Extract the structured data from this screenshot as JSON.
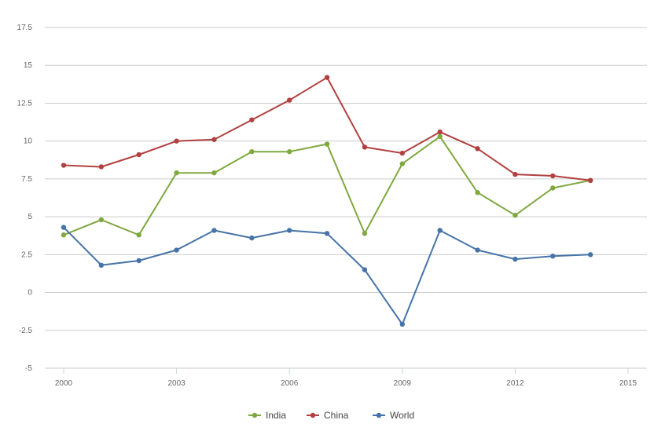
{
  "chart_data": {
    "type": "line",
    "title": "",
    "xlabel": "",
    "ylabel": "",
    "x": [
      2000,
      2001,
      2002,
      2003,
      2004,
      2005,
      2006,
      2007,
      2008,
      2009,
      2010,
      2011,
      2012,
      2013,
      2014
    ],
    "xlim": [
      2000,
      2015
    ],
    "ylim": [
      -5,
      17.5
    ],
    "x_ticks": [
      "2000",
      "2003",
      "2006",
      "2009",
      "2012",
      "2015"
    ],
    "y_ticks": [
      "17.5",
      "15",
      "12.5",
      "10",
      "7.5",
      "5",
      "2.5",
      "0",
      "-2.5",
      "-5"
    ],
    "grid": "horizontal",
    "legend_position": "bottom",
    "series": [
      {
        "name": "India",
        "color": "#7fa83f",
        "values": [
          3.8,
          4.8,
          3.8,
          7.9,
          7.9,
          9.3,
          9.3,
          9.8,
          3.9,
          8.5,
          10.3,
          6.6,
          5.1,
          6.9,
          7.4
        ]
      },
      {
        "name": "China",
        "color": "#b24040",
        "values": [
          8.4,
          8.3,
          9.1,
          10.0,
          10.1,
          11.4,
          12.7,
          14.2,
          9.6,
          9.2,
          10.6,
          9.5,
          7.8,
          7.7,
          7.4
        ]
      },
      {
        "name": "World",
        "color": "#4673a8",
        "values": [
          4.3,
          1.8,
          2.1,
          2.8,
          4.1,
          3.6,
          4.1,
          3.9,
          1.5,
          -2.1,
          4.1,
          2.8,
          2.2,
          2.4,
          2.5
        ]
      }
    ]
  }
}
